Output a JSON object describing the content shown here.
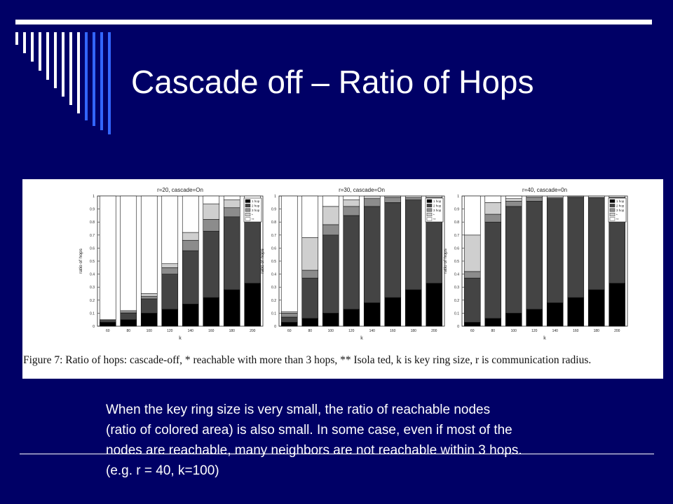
{
  "slide": {
    "title": "Cascade off – Ratio of Hops",
    "caption": "Figure 7: Ratio of hops: cascade-off, * reachable with more than 3 hops, ** Isola ted, k is key ring size, r is communication radius.",
    "body_lines": [
      "When the key ring size is very small, the ratio of reachable nodes",
      "(ratio of colored area) is also small.  In some case, even if most of the",
      "nodes are reachable, many neighbors are not reachable within 3 hops.",
      "(e.g. r = 40, k=100)"
    ]
  },
  "colors": {
    "background": "#000066",
    "text": "#ffffff",
    "hop1": "#000000",
    "hop2": "#444444",
    "hop3": "#8c8c8c",
    "more": "#cfcfcf",
    "isolated": "#ffffff"
  },
  "chart_data": [
    {
      "type": "bar",
      "stacked": true,
      "title": "r=20, cascade=On",
      "xlabel": "k",
      "ylabel": "ratio of hops",
      "ylim": [
        0,
        1
      ],
      "yticks": [
        "0",
        "0.1",
        "0.2",
        "0.3",
        "0.4",
        "0.5",
        "0.6",
        "0.7",
        "0.8",
        "0.9",
        "1"
      ],
      "categories": [
        "60",
        "80",
        "100",
        "120",
        "140",
        "160",
        "180",
        "200"
      ],
      "legend": [
        "1 hop",
        "2 hop",
        "3 hop",
        "*",
        "**"
      ],
      "legend_position": "top-right",
      "series": [
        {
          "name": "1 hop",
          "values": [
            0.03,
            0.05,
            0.1,
            0.13,
            0.17,
            0.22,
            0.28,
            0.33
          ]
        },
        {
          "name": "2 hop",
          "values": [
            0.02,
            0.05,
            0.11,
            0.27,
            0.41,
            0.51,
            0.56,
            0.55
          ]
        },
        {
          "name": "3 hop",
          "values": [
            0.0,
            0.01,
            0.02,
            0.05,
            0.08,
            0.09,
            0.07,
            0.05
          ]
        },
        {
          "name": "*",
          "values": [
            0.0,
            0.01,
            0.02,
            0.03,
            0.06,
            0.12,
            0.06,
            0.04
          ]
        },
        {
          "name": "**",
          "values": [
            0.95,
            0.88,
            0.75,
            0.52,
            0.28,
            0.06,
            0.03,
            0.03
          ]
        }
      ]
    },
    {
      "type": "bar",
      "stacked": true,
      "title": "r=30, cascade=On",
      "xlabel": "k",
      "ylabel": "ratio of hops",
      "ylim": [
        0,
        1
      ],
      "yticks": [
        "0",
        "0.1",
        "0.2",
        "0.3",
        "0.4",
        "0.5",
        "0.6",
        "0.7",
        "0.8",
        "0.9",
        "1"
      ],
      "categories": [
        "60",
        "80",
        "100",
        "120",
        "140",
        "160",
        "180",
        "200"
      ],
      "legend": [
        "1 hop",
        "2 hop",
        "3 hop",
        "*",
        "**"
      ],
      "legend_position": "top-right",
      "series": [
        {
          "name": "1 hop",
          "values": [
            0.03,
            0.06,
            0.1,
            0.13,
            0.18,
            0.22,
            0.28,
            0.33
          ]
        },
        {
          "name": "2 hop",
          "values": [
            0.04,
            0.31,
            0.6,
            0.72,
            0.74,
            0.73,
            0.69,
            0.65
          ]
        },
        {
          "name": "3 hop",
          "values": [
            0.03,
            0.06,
            0.08,
            0.07,
            0.06,
            0.04,
            0.02,
            0.01
          ]
        },
        {
          "name": "*",
          "values": [
            0.01,
            0.25,
            0.14,
            0.05,
            0.02,
            0.01,
            0.0,
            0.0
          ]
        },
        {
          "name": "**",
          "values": [
            0.89,
            0.32,
            0.08,
            0.03,
            0.0,
            0.0,
            0.01,
            0.01
          ]
        }
      ]
    },
    {
      "type": "bar",
      "stacked": true,
      "title": "r=40, cascade=0n",
      "xlabel": "k",
      "ylabel": "ratio of hops",
      "ylim": [
        0,
        1
      ],
      "yticks": [
        "0",
        "0.1",
        "0.2",
        "0.3",
        "0.4",
        "0.5",
        "0.6",
        "0.7",
        "0.8",
        "0.9",
        "1"
      ],
      "categories": [
        "60",
        "80",
        "100",
        "120",
        "140",
        "160",
        "180",
        "200"
      ],
      "legend": [
        "1 hop",
        "2 hop",
        "3 hop",
        "*",
        "**"
      ],
      "legend_position": "top-right",
      "series": [
        {
          "name": "1 hop",
          "values": [
            0.03,
            0.06,
            0.1,
            0.13,
            0.18,
            0.22,
            0.28,
            0.33
          ]
        },
        {
          "name": "2 hop",
          "values": [
            0.34,
            0.74,
            0.82,
            0.83,
            0.8,
            0.77,
            0.71,
            0.66
          ]
        },
        {
          "name": "3 hop",
          "values": [
            0.05,
            0.06,
            0.04,
            0.03,
            0.01,
            0.01,
            0.0,
            0.0
          ]
        },
        {
          "name": "*",
          "values": [
            0.28,
            0.09,
            0.02,
            0.01,
            0.0,
            0.0,
            0.0,
            0.0
          ]
        },
        {
          "name": "**",
          "values": [
            0.3,
            0.05,
            0.02,
            0.0,
            0.01,
            0.0,
            0.01,
            0.01
          ]
        }
      ]
    }
  ]
}
